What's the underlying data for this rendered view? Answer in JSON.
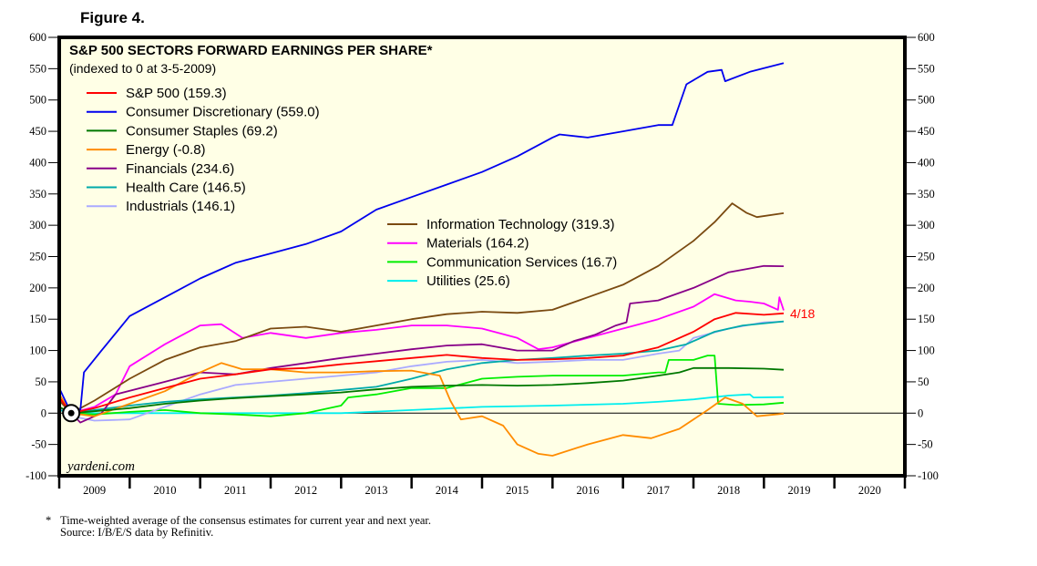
{
  "figure_label": "Figure 4.",
  "footnote": {
    "marker": "*",
    "line1": "Time-weighted average of the consensus estimates for current year and next year.",
    "line2": "Source: I/B/E/S data by Refinitiv."
  },
  "chart_data": {
    "type": "line",
    "title": "S&P 500 SECTORS FORWARD EARNINGS PER SHARE*",
    "subtitle": "(indexed to 0 at 3-5-2009)",
    "watermark": "yardeni.com",
    "annotation": "4/18",
    "xlabel": "",
    "ylabel": "",
    "xlim": [
      2009,
      2021
    ],
    "ylim": [
      -100,
      600
    ],
    "y_ticks": [
      600,
      550,
      500,
      450,
      400,
      350,
      300,
      250,
      200,
      150,
      100,
      50,
      0,
      -50,
      -100
    ],
    "x_tick_labels": [
      "2009",
      "2010",
      "2011",
      "2012",
      "2013",
      "2014",
      "2015",
      "2016",
      "2017",
      "2018",
      "2019",
      "2020"
    ],
    "grid": false,
    "zero_line": true,
    "base_marker": {
      "x": 2009.17,
      "y": 0
    },
    "legend_placement": "top-left",
    "series": [
      {
        "name": "S&P 500 (159.3)",
        "color": "#ff0000",
        "x": [
          2009.0,
          2009.17,
          2009.5,
          2010.0,
          2010.5,
          2011.0,
          2011.5,
          2012.0,
          2012.5,
          2013.0,
          2013.5,
          2014.0,
          2014.5,
          2015.0,
          2015.5,
          2016.0,
          2016.5,
          2017.0,
          2017.5,
          2018.0,
          2018.3,
          2018.6,
          2019.0,
          2019.28
        ],
        "values": [
          25,
          0,
          8,
          25,
          40,
          55,
          62,
          70,
          72,
          78,
          83,
          88,
          93,
          88,
          85,
          86,
          88,
          92,
          105,
          130,
          150,
          160,
          157,
          159.3
        ]
      },
      {
        "name": "Consumer Discretionary (559.0)",
        "color": "#0000ee",
        "x": [
          2009.0,
          2009.17,
          2009.3,
          2009.35,
          2009.6,
          2010.0,
          2010.5,
          2011.0,
          2011.5,
          2012.0,
          2012.5,
          2013.0,
          2013.5,
          2014.0,
          2014.5,
          2015.0,
          2015.5,
          2016.0,
          2016.1,
          2016.5,
          2017.0,
          2017.5,
          2017.7,
          2017.9,
          2018.2,
          2018.4,
          2018.45,
          2018.8,
          2019.28
        ],
        "values": [
          40,
          0,
          5,
          65,
          100,
          155,
          185,
          215,
          240,
          255,
          270,
          290,
          325,
          345,
          365,
          385,
          410,
          440,
          445,
          440,
          450,
          460,
          460,
          525,
          545,
          548,
          530,
          545,
          559
        ]
      },
      {
        "name": "Consumer Staples (69.2)",
        "color": "#007700",
        "x": [
          2009.0,
          2009.17,
          2009.5,
          2010.0,
          2010.5,
          2011.0,
          2011.5,
          2012.0,
          2012.5,
          2013.0,
          2013.5,
          2014.0,
          2014.5,
          2015.0,
          2015.5,
          2016.0,
          2016.5,
          2017.0,
          2017.5,
          2017.8,
          2018.0,
          2018.5,
          2019.0,
          2019.28
        ],
        "values": [
          10,
          0,
          3,
          8,
          15,
          20,
          24,
          27,
          30,
          33,
          38,
          42,
          44,
          45,
          44,
          45,
          48,
          52,
          60,
          65,
          72,
          72,
          71,
          69.2
        ]
      },
      {
        "name": "Energy (-0.8)",
        "color": "#ff8c00",
        "x": [
          2009.0,
          2009.17,
          2009.5,
          2010.0,
          2010.5,
          2011.0,
          2011.3,
          2011.6,
          2012.0,
          2012.5,
          2013.0,
          2013.5,
          2014.0,
          2014.4,
          2014.55,
          2014.7,
          2015.0,
          2015.3,
          2015.5,
          2015.8,
          2016.0,
          2016.5,
          2017.0,
          2017.4,
          2017.8,
          2018.2,
          2018.45,
          2018.7,
          2018.9,
          2019.28
        ],
        "values": [
          30,
          0,
          -5,
          15,
          35,
          65,
          80,
          70,
          70,
          65,
          65,
          67,
          68,
          60,
          20,
          -10,
          -5,
          -20,
          -50,
          -65,
          -68,
          -50,
          -35,
          -40,
          -25,
          5,
          25,
          15,
          -5,
          -0.8
        ]
      },
      {
        "name": "Financials (234.6)",
        "color": "#880088",
        "x": [
          2009.0,
          2009.17,
          2009.3,
          2009.6,
          2009.8,
          2010.5,
          2011.0,
          2011.5,
          2012.0,
          2012.5,
          2013.0,
          2013.5,
          2014.0,
          2014.5,
          2015.0,
          2015.5,
          2016.0,
          2016.3,
          2016.6,
          2016.9,
          2017.05,
          2017.1,
          2017.5,
          2018.0,
          2018.5,
          2019.0,
          2019.28
        ],
        "values": [
          30,
          0,
          -15,
          0,
          30,
          50,
          65,
          62,
          72,
          80,
          88,
          95,
          102,
          108,
          110,
          100,
          100,
          115,
          125,
          140,
          145,
          175,
          180,
          200,
          225,
          235,
          234.6
        ]
      },
      {
        "name": "Health Care (146.5)",
        "color": "#00aaaa",
        "x": [
          2009.0,
          2009.17,
          2009.5,
          2010.0,
          2010.5,
          2011.0,
          2011.5,
          2012.0,
          2012.5,
          2013.0,
          2013.5,
          2014.0,
          2014.5,
          2015.0,
          2015.5,
          2016.0,
          2016.5,
          2017.0,
          2017.5,
          2017.9,
          2018.3,
          2018.7,
          2019.28
        ],
        "values": [
          5,
          0,
          5,
          12,
          18,
          22,
          25,
          28,
          32,
          37,
          42,
          55,
          70,
          80,
          85,
          88,
          92,
          95,
          100,
          110,
          130,
          140,
          146.5
        ]
      },
      {
        "name": "Industrials (146.1)",
        "color": "#aaaaff",
        "x": [
          2009.0,
          2009.17,
          2009.5,
          2010.0,
          2010.5,
          2011.0,
          2011.5,
          2012.0,
          2012.5,
          2013.0,
          2013.5,
          2014.0,
          2014.5,
          2015.0,
          2015.5,
          2016.0,
          2016.5,
          2017.0,
          2017.5,
          2017.8,
          2018.0,
          2018.5,
          2019.0,
          2019.28
        ],
        "values": [
          10,
          -5,
          -12,
          -10,
          10,
          30,
          45,
          50,
          55,
          60,
          65,
          75,
          82,
          85,
          80,
          82,
          85,
          85,
          95,
          100,
          120,
          135,
          145,
          146.1
        ]
      },
      {
        "name": "Information Technology (319.3)",
        "color": "#7a4a10",
        "x": [
          2009.0,
          2009.17,
          2009.5,
          2010.0,
          2010.5,
          2011.0,
          2011.5,
          2012.0,
          2012.5,
          2013.0,
          2013.5,
          2014.0,
          2014.5,
          2015.0,
          2015.5,
          2016.0,
          2016.5,
          2017.0,
          2017.5,
          2018.0,
          2018.3,
          2018.55,
          2018.75,
          2018.9,
          2019.28
        ],
        "values": [
          20,
          0,
          20,
          55,
          85,
          105,
          115,
          135,
          138,
          130,
          140,
          150,
          158,
          162,
          160,
          165,
          185,
          205,
          235,
          275,
          305,
          335,
          320,
          313,
          319.3
        ]
      },
      {
        "name": "Materials (164.2)",
        "color": "#ff00ff",
        "x": [
          2009.0,
          2009.17,
          2009.5,
          2009.8,
          2010.0,
          2010.5,
          2011.0,
          2011.3,
          2011.6,
          2012.0,
          2012.5,
          2013.0,
          2013.5,
          2014.0,
          2014.5,
          2015.0,
          2015.5,
          2015.8,
          2016.0,
          2016.5,
          2017.0,
          2017.5,
          2018.0,
          2018.3,
          2018.6,
          2018.8,
          2019.0,
          2019.2,
          2019.22,
          2019.28
        ],
        "values": [
          30,
          0,
          10,
          30,
          75,
          110,
          140,
          142,
          120,
          128,
          120,
          128,
          133,
          140,
          140,
          135,
          120,
          102,
          105,
          120,
          135,
          150,
          170,
          190,
          180,
          178,
          175,
          165,
          185,
          164.2
        ]
      },
      {
        "name": "Communication Services (16.7)",
        "color": "#00ee00",
        "x": [
          2009.0,
          2009.17,
          2009.5,
          2010.0,
          2010.5,
          2011.0,
          2011.5,
          2012.0,
          2012.5,
          2013.0,
          2013.1,
          2013.5,
          2014.0,
          2014.5,
          2015.0,
          2015.5,
          2016.0,
          2016.5,
          2017.0,
          2017.5,
          2017.6,
          2017.65,
          2018.0,
          2018.2,
          2018.3,
          2018.35,
          2018.6,
          2019.0,
          2019.28
        ],
        "values": [
          25,
          0,
          -2,
          2,
          5,
          0,
          -2,
          -5,
          0,
          12,
          25,
          30,
          40,
          40,
          55,
          58,
          60,
          60,
          60,
          65,
          65,
          85,
          85,
          92,
          92,
          15,
          13,
          14,
          16.7
        ]
      },
      {
        "name": "Utilities (25.6)",
        "color": "#00eeee",
        "x": [
          2009.0,
          2009.17,
          2010.0,
          2011.0,
          2012.0,
          2013.0,
          2014.0,
          2015.0,
          2016.0,
          2017.0,
          2017.5,
          2018.0,
          2018.5,
          2018.8,
          2018.85,
          2019.28
        ],
        "values": [
          5,
          0,
          0,
          0,
          0,
          0,
          5,
          10,
          12,
          15,
          18,
          22,
          28,
          30,
          25,
          25.6
        ]
      }
    ]
  }
}
